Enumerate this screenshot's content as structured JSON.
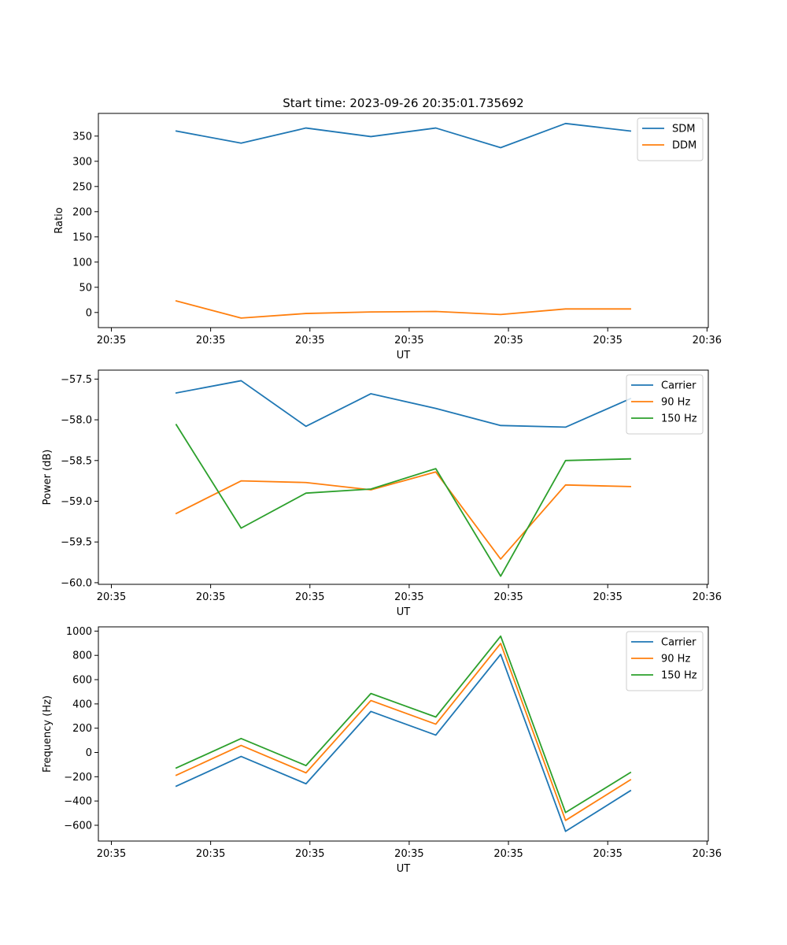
{
  "chart_data": [
    {
      "type": "line",
      "title": "Start time: 2023-09-26 20:35:01.735692",
      "xlabel": "UT",
      "ylabel": "Ratio",
      "x": [
        0.5,
        1.0,
        1.5,
        2.0,
        2.5,
        3.0,
        3.5,
        4.0
      ],
      "xlim": [
        -0.1,
        4.6
      ],
      "x_ticks": [
        0,
        0.765,
        1.53,
        2.295,
        3.06,
        3.825,
        4.59
      ],
      "x_tick_labels": [
        "20:35",
        "20:35",
        "20:35",
        "20:35",
        "20:35",
        "20:35",
        "20:36"
      ],
      "ylim": [
        -30,
        395
      ],
      "y_ticks": [
        0,
        50,
        100,
        150,
        200,
        250,
        300,
        350
      ],
      "y_tick_labels": [
        "0",
        "50",
        "100",
        "150",
        "200",
        "250",
        "300",
        "350"
      ],
      "legend_position": "top-right",
      "series": [
        {
          "name": "SDM",
          "color": "#1f77b4",
          "values": [
            360,
            336,
            366,
            349,
            366,
            327,
            375,
            360
          ]
        },
        {
          "name": "DDM",
          "color": "#ff7f0e",
          "values": [
            23,
            -11,
            -2,
            1,
            2,
            -4,
            7,
            7
          ]
        }
      ]
    },
    {
      "type": "line",
      "title": "",
      "xlabel": "UT",
      "ylabel": "Power (dB)",
      "x": [
        0.5,
        1.0,
        1.5,
        2.0,
        2.5,
        3.0,
        3.5,
        4.0
      ],
      "xlim": [
        -0.1,
        4.6
      ],
      "x_ticks": [
        0,
        0.765,
        1.53,
        2.295,
        3.06,
        3.825,
        4.59
      ],
      "x_tick_labels": [
        "20:35",
        "20:35",
        "20:35",
        "20:35",
        "20:35",
        "20:35",
        "20:36"
      ],
      "ylim": [
        -60.02,
        -57.39
      ],
      "y_ticks": [
        -60.0,
        -59.5,
        -59.0,
        -58.5,
        -58.0,
        -57.5
      ],
      "y_tick_labels": [
        "−60.0",
        "−59.5",
        "−59.0",
        "−58.5",
        "−58.0",
        "−57.5"
      ],
      "legend_position": "top-right",
      "series": [
        {
          "name": "Carrier",
          "color": "#1f77b4",
          "values": [
            -57.67,
            -57.52,
            -58.08,
            -57.68,
            -57.86,
            -58.07,
            -58.09,
            -57.74
          ]
        },
        {
          "name": "90 Hz",
          "color": "#ff7f0e",
          "values": [
            -59.15,
            -58.75,
            -58.77,
            -58.86,
            -58.64,
            -59.71,
            -58.8,
            -58.82
          ]
        },
        {
          "name": "150 Hz",
          "color": "#2ca02c",
          "values": [
            -58.06,
            -59.33,
            -58.9,
            -58.85,
            -58.6,
            -59.92,
            -58.5,
            -58.48
          ]
        }
      ]
    },
    {
      "type": "line",
      "title": "",
      "xlabel": "UT",
      "ylabel": "Frequency (Hz)",
      "x": [
        0.5,
        1.0,
        1.5,
        2.0,
        2.5,
        3.0,
        3.5,
        4.0
      ],
      "xlim": [
        -0.1,
        4.6
      ],
      "x_ticks": [
        0,
        0.765,
        1.53,
        2.295,
        3.06,
        3.825,
        4.59
      ],
      "x_tick_labels": [
        "20:35",
        "20:35",
        "20:35",
        "20:35",
        "20:35",
        "20:35",
        "20:36"
      ],
      "ylim": [
        -730,
        1035
      ],
      "y_ticks": [
        -600,
        -400,
        -200,
        0,
        200,
        400,
        600,
        800,
        1000
      ],
      "y_tick_labels": [
        "−600",
        "−400",
        "−200",
        "0",
        "200",
        "400",
        "600",
        "800",
        "1000"
      ],
      "legend_position": "top-right",
      "series": [
        {
          "name": "Carrier",
          "color": "#1f77b4",
          "values": [
            -278,
            -33,
            -258,
            338,
            143,
            808,
            -650,
            -315
          ]
        },
        {
          "name": "90 Hz",
          "color": "#ff7f0e",
          "values": [
            -188,
            58,
            -168,
            428,
            233,
            898,
            -560,
            -225
          ]
        },
        {
          "name": "150 Hz",
          "color": "#2ca02c",
          "values": [
            -128,
            115,
            -108,
            486,
            292,
            958,
            -495,
            -165
          ]
        }
      ]
    }
  ]
}
